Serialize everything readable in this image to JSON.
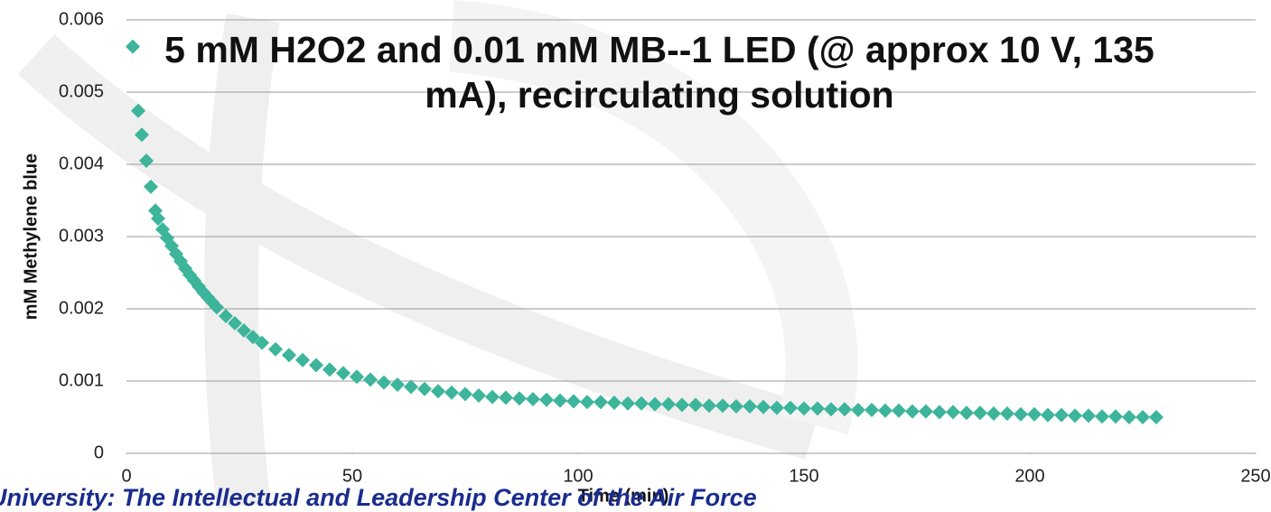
{
  "chart_data": {
    "type": "scatter",
    "title": "5 mM H2O2 and 0.01 mM MB--1 LED (@ approx 10 V, 135 mA), recirculating solution",
    "x_label": "Time (min)",
    "y_label": "mM Methylene blue",
    "annotation": "University: The Intellectual and Leadership Center of the Air Force",
    "color": "#3cb59a",
    "grid": true,
    "xlim": [
      0,
      250
    ],
    "xticks": [
      0,
      50,
      100,
      150,
      200,
      250
    ],
    "ylim": [
      0,
      0.006
    ],
    "yticks": [
      0,
      0.001,
      0.002,
      0.003,
      0.004,
      0.005,
      0.006
    ],
    "x": [
      1.4,
      2.6,
      3.4,
      4.4,
      5.4,
      6.4,
      7,
      8,
      9,
      10,
      11,
      12,
      13,
      14,
      15,
      16,
      17,
      18,
      19,
      20,
      22,
      24,
      26,
      28,
      30,
      33,
      36,
      39,
      42,
      45,
      48,
      51,
      54,
      57,
      60,
      63,
      66,
      69,
      72,
      75,
      78,
      81,
      84,
      87,
      90,
      93,
      96,
      99,
      102,
      105,
      108,
      111,
      114,
      117,
      120,
      123,
      126,
      129,
      132,
      135,
      138,
      141,
      144,
      147,
      150,
      153,
      156,
      159,
      162,
      165,
      168,
      171,
      174,
      177,
      180,
      183,
      186,
      189,
      192,
      195,
      198,
      201,
      204,
      207,
      210,
      213,
      216,
      219,
      222,
      225,
      228
    ],
    "values": [
      0.00563,
      0.00474,
      0.00441,
      0.00405,
      0.00369,
      0.00336,
      0.00325,
      0.0031,
      0.00298,
      0.00287,
      0.00276,
      0.00266,
      0.00256,
      0.00247,
      0.00239,
      0.00231,
      0.00223,
      0.00216,
      0.00209,
      0.00202,
      0.0019,
      0.0018,
      0.0017,
      0.00161,
      0.00153,
      0.00144,
      0.00136,
      0.00129,
      0.00122,
      0.00116,
      0.00111,
      0.00106,
      0.00102,
      0.00098,
      0.00095,
      0.00092,
      0.00089,
      0.00086,
      0.00084,
      0.00082,
      0.0008,
      0.00078,
      0.00077,
      0.00076,
      0.00075,
      0.00074,
      0.00073,
      0.00072,
      0.00071,
      0.00071,
      0.0007,
      0.00069,
      0.00069,
      0.00068,
      0.00068,
      0.00067,
      0.00067,
      0.00066,
      0.00066,
      0.00065,
      0.00065,
      0.00064,
      0.00063,
      0.00063,
      0.00062,
      0.00062,
      0.00061,
      0.00061,
      0.0006,
      0.0006,
      0.00059,
      0.00059,
      0.00058,
      0.00058,
      0.00057,
      0.00057,
      0.00056,
      0.00056,
      0.00055,
      0.00055,
      0.00054,
      0.00054,
      0.00053,
      0.00053,
      0.00052,
      0.00052,
      0.00051,
      0.00051,
      0.0005,
      0.0005,
      0.0005
    ]
  }
}
